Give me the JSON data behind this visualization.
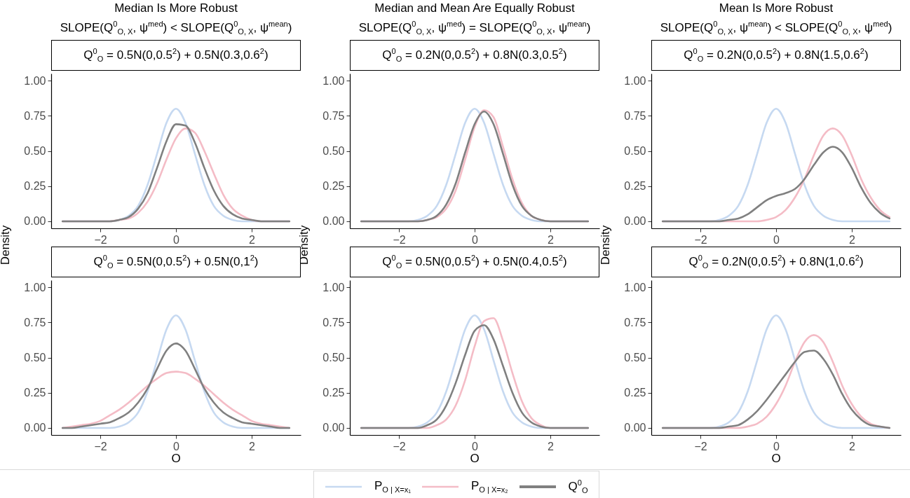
{
  "chart_data": [
    {
      "type": "line",
      "title": "Median Is More Robust",
      "subtitle": "SLOPE(Q$^{0}$$_{O, X}$,  ψ$^{med}$) < SLOPE(Q$^{0}$$_{O, X}$,  ψ$^{mean}$)",
      "annotations": [
        "Q$^{0}$$_{O}$ = 0.5N(0,0.5$^{2}$) + 0.5N(0.3,0.6$^{2}$)"
      ],
      "ylabel": "Density",
      "legend": "bottom",
      "x": [
        -3,
        -2.75,
        -2.5,
        -2.25,
        -2,
        -1.75,
        -1.5,
        -1.25,
        -1,
        -0.75,
        -0.5,
        -0.25,
        0,
        0.25,
        0.5,
        0.75,
        1,
        1.25,
        1.5,
        1.75,
        2,
        2.25,
        2.5,
        2.75,
        3
      ],
      "series": [
        {
          "name": "P$_{O | X=x₁}$",
          "color": "#c6d9f1",
          "values": [
            0,
            0,
            0,
            0,
            0,
            0,
            0.01,
            0.04,
            0.11,
            0.26,
            0.48,
            0.7,
            0.8,
            0.7,
            0.48,
            0.26,
            0.11,
            0.04,
            0.01,
            0,
            0,
            0,
            0,
            0,
            0
          ]
        },
        {
          "name": "P$_{O | X=x₂}$",
          "color": "#f4bcc6",
          "values": [
            0,
            0,
            0,
            0,
            0,
            0,
            0.01,
            0.02,
            0.06,
            0.14,
            0.27,
            0.44,
            0.59,
            0.66,
            0.63,
            0.5,
            0.34,
            0.19,
            0.09,
            0.04,
            0.01,
            0,
            0,
            0,
            0
          ]
        },
        {
          "name": "Q$^{0}$$_{O}$",
          "color": "#808080",
          "values": [
            0,
            0,
            0,
            0,
            0,
            0,
            0.01,
            0.03,
            0.09,
            0.2,
            0.38,
            0.57,
            0.69,
            0.68,
            0.56,
            0.38,
            0.22,
            0.11,
            0.05,
            0.02,
            0.01,
            0,
            0,
            0,
            0
          ]
        }
      ],
      "xlim": [
        -3.3,
        3.3
      ],
      "ylim": [
        -0.05,
        1.05
      ],
      "xticks": [
        -2,
        0,
        2
      ],
      "yticks": [
        {
          "value": 0,
          "label": "0.00"
        },
        {
          "value": 0.25,
          "label": "0.25"
        },
        {
          "value": 0.5,
          "label": "0.50"
        },
        {
          "value": 0.75,
          "label": "0.75"
        },
        {
          "value": 1,
          "label": "1.00"
        }
      ]
    },
    {
      "type": "line",
      "title": "Median and Mean Are Equally Robust",
      "subtitle": "SLOPE(Q$^{0}$$_{O, X}$,  ψ$^{med}$) = SLOPE(Q$^{0}$$_{O, X}$,  ψ$^{mean}$)",
      "annotations": [
        "Q$^{0}$$_{O}$ = 0.2N(0,0.5$^{2}$) + 0.8N(0.3,0.5$^{2}$)"
      ],
      "ylabel": "Density",
      "x": [
        -3,
        -2.75,
        -2.5,
        -2.25,
        -2,
        -1.75,
        -1.5,
        -1.25,
        -1,
        -0.75,
        -0.5,
        -0.25,
        0,
        0.25,
        0.5,
        0.75,
        1,
        1.25,
        1.5,
        1.75,
        2,
        2.25,
        2.5,
        2.75,
        3
      ],
      "series": [
        {
          "color": "#c6d9f1",
          "values": [
            0,
            0,
            0,
            0,
            0,
            0,
            0.01,
            0.04,
            0.11,
            0.26,
            0.48,
            0.7,
            0.8,
            0.7,
            0.48,
            0.26,
            0.11,
            0.04,
            0.01,
            0,
            0,
            0,
            0,
            0,
            0
          ]
        },
        {
          "color": "#f4bcc6",
          "values": [
            0,
            0,
            0,
            0,
            0,
            0,
            0,
            0.01,
            0.03,
            0.09,
            0.22,
            0.44,
            0.67,
            0.79,
            0.74,
            0.53,
            0.3,
            0.13,
            0.04,
            0.01,
            0,
            0,
            0,
            0,
            0
          ]
        },
        {
          "color": "#808080",
          "values": [
            0,
            0,
            0,
            0,
            0,
            0,
            0,
            0.01,
            0.04,
            0.12,
            0.27,
            0.49,
            0.69,
            0.78,
            0.69,
            0.48,
            0.26,
            0.11,
            0.04,
            0.01,
            0,
            0,
            0,
            0,
            0
          ]
        }
      ],
      "xlim": [
        -3.3,
        3.3
      ],
      "ylim": [
        -0.05,
        1.05
      ],
      "xticks": [
        -2,
        0,
        2
      ],
      "yticks": [
        {
          "value": 0,
          "label": "0.00"
        },
        {
          "value": 0.25,
          "label": "0.25"
        },
        {
          "value": 0.5,
          "label": "0.50"
        },
        {
          "value": 0.75,
          "label": "0.75"
        },
        {
          "value": 1,
          "label": "1.00"
        }
      ]
    },
    {
      "type": "line",
      "title": "Mean Is More Robust",
      "subtitle": "SLOPE(Q$^{0}$$_{O, X}$,  ψ$^{mean}$) < SLOPE(Q$^{0}$$_{O, X}$,  ψ$^{med}$)",
      "annotations": [
        "Q$^{0}$$_{O}$ = 0.2N(0,0.5$^{2}$) + 0.8N(1.5,0.6$^{2}$)"
      ],
      "ylabel": "Density",
      "x": [
        -3,
        -2.75,
        -2.5,
        -2.25,
        -2,
        -1.75,
        -1.5,
        -1.25,
        -1,
        -0.75,
        -0.5,
        -0.25,
        0,
        0.25,
        0.5,
        0.75,
        1,
        1.25,
        1.5,
        1.75,
        2,
        2.25,
        2.5,
        2.75,
        3
      ],
      "series": [
        {
          "color": "#c6d9f1",
          "values": [
            0,
            0,
            0,
            0,
            0,
            0,
            0.01,
            0.04,
            0.11,
            0.26,
            0.48,
            0.7,
            0.8,
            0.7,
            0.48,
            0.26,
            0.11,
            0.04,
            0.01,
            0,
            0,
            0,
            0,
            0,
            0
          ]
        },
        {
          "color": "#f4bcc6",
          "values": [
            0,
            0,
            0,
            0,
            0,
            0,
            0,
            0,
            0,
            0,
            0,
            0.01,
            0.03,
            0.08,
            0.17,
            0.3,
            0.47,
            0.61,
            0.66,
            0.61,
            0.47,
            0.3,
            0.17,
            0.08,
            0.03
          ]
        },
        {
          "color": "#808080",
          "values": [
            0,
            0,
            0,
            0,
            0,
            0,
            0,
            0.01,
            0.02,
            0.05,
            0.1,
            0.15,
            0.18,
            0.2,
            0.23,
            0.3,
            0.4,
            0.49,
            0.53,
            0.49,
            0.38,
            0.24,
            0.13,
            0.06,
            0.02
          ]
        }
      ],
      "xlim": [
        -3.3,
        3.3
      ],
      "ylim": [
        -0.05,
        1.05
      ],
      "xticks": [
        -2,
        0,
        2
      ],
      "yticks": [
        {
          "value": 0,
          "label": "0.00"
        },
        {
          "value": 0.25,
          "label": "0.25"
        },
        {
          "value": 0.5,
          "label": "0.50"
        },
        {
          "value": 0.75,
          "label": "0.75"
        },
        {
          "value": 1,
          "label": "1.00"
        }
      ]
    },
    {
      "type": "line",
      "annotations": [
        "Q$^{0}$$_{O}$ = 0.5N(0,0.5$^{2}$) + 0.5N(0,1$^{2}$)"
      ],
      "xlabel": "O",
      "x": [
        -3,
        -2.75,
        -2.5,
        -2.25,
        -2,
        -1.75,
        -1.5,
        -1.25,
        -1,
        -0.75,
        -0.5,
        -0.25,
        0,
        0.25,
        0.5,
        0.75,
        1,
        1.25,
        1.5,
        1.75,
        2,
        2.25,
        2.5,
        2.75,
        3
      ],
      "series": [
        {
          "color": "#c6d9f1",
          "values": [
            0,
            0,
            0,
            0,
            0,
            0,
            0.01,
            0.04,
            0.11,
            0.26,
            0.48,
            0.7,
            0.8,
            0.7,
            0.48,
            0.26,
            0.11,
            0.04,
            0.01,
            0,
            0,
            0,
            0,
            0,
            0
          ]
        },
        {
          "color": "#f4bcc6",
          "values": [
            0,
            0.01,
            0.02,
            0.03,
            0.05,
            0.09,
            0.13,
            0.18,
            0.24,
            0.3,
            0.35,
            0.39,
            0.4,
            0.39,
            0.35,
            0.3,
            0.24,
            0.18,
            0.13,
            0.09,
            0.05,
            0.03,
            0.02,
            0.01,
            0
          ]
        },
        {
          "color": "#808080",
          "values": [
            0,
            0,
            0.01,
            0.02,
            0.03,
            0.04,
            0.07,
            0.11,
            0.18,
            0.28,
            0.42,
            0.55,
            0.6,
            0.55,
            0.42,
            0.28,
            0.18,
            0.11,
            0.07,
            0.04,
            0.03,
            0.02,
            0.01,
            0,
            0
          ]
        }
      ],
      "xlim": [
        -3.3,
        3.3
      ],
      "ylim": [
        -0.05,
        1.05
      ],
      "xticks": [
        -2,
        0,
        2
      ],
      "yticks": [
        {
          "value": 0,
          "label": "0.00"
        },
        {
          "value": 0.25,
          "label": "0.25"
        },
        {
          "value": 0.5,
          "label": "0.50"
        },
        {
          "value": 0.75,
          "label": "0.75"
        },
        {
          "value": 1,
          "label": "1.00"
        }
      ]
    },
    {
      "type": "line",
      "annotations": [
        "Q$^{0}$$_{O}$ = 0.5N(0,0.5$^{2}$) + 0.5N(0.4,0.5$^{2}$)"
      ],
      "xlabel": "O",
      "x": [
        -3,
        -2.75,
        -2.5,
        -2.25,
        -2,
        -1.75,
        -1.5,
        -1.25,
        -1,
        -0.75,
        -0.5,
        -0.25,
        0,
        0.25,
        0.5,
        0.75,
        1,
        1.25,
        1.5,
        1.75,
        2,
        2.25,
        2.5,
        2.75,
        3
      ],
      "series": [
        {
          "color": "#c6d9f1",
          "values": [
            0,
            0,
            0,
            0,
            0,
            0,
            0.01,
            0.04,
            0.11,
            0.26,
            0.48,
            0.7,
            0.8,
            0.7,
            0.48,
            0.26,
            0.11,
            0.04,
            0.01,
            0,
            0,
            0,
            0,
            0,
            0
          ]
        },
        {
          "color": "#f4bcc6",
          "values": [
            0,
            0,
            0,
            0,
            0,
            0,
            0,
            0,
            0.02,
            0.06,
            0.16,
            0.34,
            0.58,
            0.76,
            0.78,
            0.62,
            0.39,
            0.19,
            0.07,
            0.02,
            0,
            0,
            0,
            0,
            0
          ]
        },
        {
          "color": "#808080",
          "values": [
            0,
            0,
            0,
            0,
            0,
            0,
            0,
            0.02,
            0.06,
            0.16,
            0.32,
            0.52,
            0.69,
            0.73,
            0.63,
            0.44,
            0.25,
            0.11,
            0.04,
            0.01,
            0,
            0,
            0,
            0,
            0
          ]
        }
      ],
      "xlim": [
        -3.3,
        3.3
      ],
      "ylim": [
        -0.05,
        1.05
      ],
      "xticks": [
        -2,
        0,
        2
      ],
      "yticks": [
        {
          "value": 0,
          "label": "0.00"
        },
        {
          "value": 0.25,
          "label": "0.25"
        },
        {
          "value": 0.5,
          "label": "0.50"
        },
        {
          "value": 0.75,
          "label": "0.75"
        },
        {
          "value": 1,
          "label": "1.00"
        }
      ]
    },
    {
      "type": "line",
      "annotations": [
        "Q$^{0}$$_{O}$ = 0.2N(0,0.5$^{2}$) + 0.8N(1,0.6$^{2}$)"
      ],
      "xlabel": "O",
      "x": [
        -3,
        -2.75,
        -2.5,
        -2.25,
        -2,
        -1.75,
        -1.5,
        -1.25,
        -1,
        -0.75,
        -0.5,
        -0.25,
        0,
        0.25,
        0.5,
        0.75,
        1,
        1.25,
        1.5,
        1.75,
        2,
        2.25,
        2.5,
        2.75,
        3
      ],
      "series": [
        {
          "color": "#c6d9f1",
          "values": [
            0,
            0,
            0,
            0,
            0,
            0,
            0.01,
            0.04,
            0.11,
            0.26,
            0.48,
            0.7,
            0.8,
            0.7,
            0.48,
            0.26,
            0.11,
            0.04,
            0.01,
            0,
            0,
            0,
            0,
            0,
            0
          ]
        },
        {
          "color": "#f4bcc6",
          "values": [
            0,
            0,
            0,
            0,
            0,
            0,
            0,
            0,
            0,
            0.01,
            0.03,
            0.08,
            0.17,
            0.3,
            0.47,
            0.61,
            0.66,
            0.61,
            0.47,
            0.3,
            0.17,
            0.08,
            0.03,
            0.01,
            0
          ]
        },
        {
          "color": "#808080",
          "values": [
            0,
            0,
            0,
            0,
            0,
            0,
            0,
            0.01,
            0.02,
            0.06,
            0.12,
            0.2,
            0.29,
            0.38,
            0.47,
            0.54,
            0.55,
            0.49,
            0.38,
            0.24,
            0.13,
            0.06,
            0.02,
            0.01,
            0
          ]
        }
      ],
      "xlim": [
        -3.3,
        3.3
      ],
      "ylim": [
        -0.05,
        1.05
      ],
      "xticks": [
        -2,
        0,
        2
      ],
      "yticks": [
        {
          "value": 0,
          "label": "0.00"
        },
        {
          "value": 0.25,
          "label": "0.25"
        },
        {
          "value": 0.5,
          "label": "0.50"
        },
        {
          "value": 0.75,
          "label": "0.75"
        },
        {
          "value": 1,
          "label": "1.00"
        }
      ]
    }
  ]
}
